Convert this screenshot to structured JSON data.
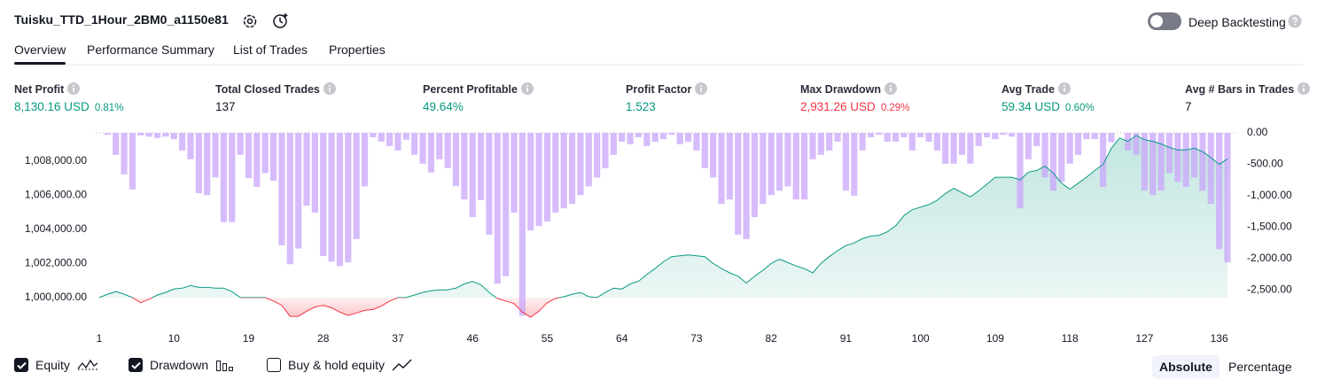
{
  "header": {
    "title": "Tuisku_TTD_1Hour_2BM0_a1150e81",
    "deep_backtesting": "Deep Backtesting"
  },
  "tabs": {
    "items": [
      "Overview",
      "Performance Summary",
      "List of Trades",
      "Properties"
    ],
    "active": 0
  },
  "metrics": [
    {
      "label": "Net Profit",
      "value": "8,130.16 USD",
      "percent": "0.81%",
      "color": "#089981"
    },
    {
      "label": "Total Closed Trades",
      "value": "137"
    },
    {
      "label": "Percent Profitable",
      "value": "49.64%",
      "color": "#089981"
    },
    {
      "label": "Profit Factor",
      "value": "1.523",
      "color": "#089981"
    },
    {
      "label": "Max Drawdown",
      "value": "2,931.26 USD",
      "percent": "0.29%",
      "color": "#f23645"
    },
    {
      "label": "Avg Trade",
      "value": "59.34 USD",
      "percent": "0.60%",
      "color": "#089981"
    },
    {
      "label": "Avg # Bars in Trades",
      "value": "7"
    }
  ],
  "chart_data": {
    "type": "combo",
    "x": [
      1,
      2,
      3,
      4,
      5,
      6,
      7,
      8,
      9,
      10,
      11,
      12,
      13,
      14,
      15,
      16,
      17,
      18,
      19,
      20,
      21,
      22,
      23,
      24,
      25,
      26,
      27,
      28,
      29,
      30,
      31,
      32,
      33,
      34,
      35,
      36,
      37,
      38,
      39,
      40,
      41,
      42,
      43,
      44,
      45,
      46,
      47,
      48,
      49,
      50,
      51,
      52,
      53,
      54,
      55,
      56,
      57,
      58,
      59,
      60,
      61,
      62,
      63,
      64,
      65,
      66,
      67,
      68,
      69,
      70,
      71,
      72,
      73,
      74,
      75,
      76,
      77,
      78,
      79,
      80,
      81,
      82,
      83,
      84,
      85,
      86,
      87,
      88,
      89,
      90,
      91,
      92,
      93,
      94,
      95,
      96,
      97,
      98,
      99,
      100,
      101,
      102,
      103,
      104,
      105,
      106,
      107,
      108,
      109,
      110,
      111,
      112,
      113,
      114,
      115,
      116,
      117,
      118,
      119,
      120,
      121,
      122,
      123,
      124,
      125,
      126,
      127,
      128,
      129,
      130,
      131,
      132,
      133,
      134,
      135,
      136,
      137
    ],
    "xlim": [
      1,
      137
    ],
    "xticks": [
      1,
      10,
      19,
      28,
      37,
      46,
      55,
      64,
      73,
      82,
      91,
      100,
      109,
      118,
      127,
      136
    ],
    "ylim": [
      998750,
      1009650
    ],
    "yticks": [
      {
        "value": 1000000,
        "label": "1,000,000.00"
      },
      {
        "value": 1002000,
        "label": "1,002,000.00"
      },
      {
        "value": 1004000,
        "label": "1,004,000.00"
      },
      {
        "value": 1006000,
        "label": "1,006,000.00"
      },
      {
        "value": 1008000,
        "label": "1,008,000.00"
      }
    ],
    "y2lim": [
      -2960,
      0
    ],
    "y2ticks": [
      {
        "value": 0,
        "label": "0.00"
      },
      {
        "value": -500,
        "label": "-500.00"
      },
      {
        "value": -1000,
        "label": "-1,000.00"
      },
      {
        "value": -1500,
        "label": "-1,500.00"
      },
      {
        "value": -2000,
        "label": "-2,000.00"
      },
      {
        "value": -2500,
        "label": "-2,500.00"
      }
    ],
    "series": [
      {
        "name": "Equity",
        "type": "area",
        "checked": true,
        "color": "#089981",
        "negative_color": "#f23645",
        "values": [
          1000000,
          1000200,
          1000350,
          1000200,
          1000000,
          999700,
          999900,
          1000150,
          1000300,
          1000500,
          1000550,
          1000700,
          1000600,
          1000600,
          1000550,
          1000550,
          1000350,
          1000000,
          1000000,
          1000000,
          1000000,
          999800,
          999550,
          998900,
          998900,
          999200,
          999450,
          999550,
          999400,
          999150,
          998950,
          999100,
          999250,
          999300,
          999500,
          999800,
          1000000,
          1000000,
          1000150,
          1000300,
          1000400,
          1000450,
          1000450,
          1000550,
          1000800,
          1000950,
          1000750,
          1000300,
          999950,
          999800,
          999650,
          999150,
          998850,
          999200,
          999700,
          999950,
          1000050,
          1000200,
          1000300,
          1000050,
          1000000,
          1000300,
          1000550,
          1000500,
          1000800,
          1000950,
          1001350,
          1001700,
          1002100,
          1002400,
          1002450,
          1002500,
          1002450,
          1002400,
          1002000,
          1001700,
          1001450,
          1001250,
          1000850,
          1001250,
          1001600,
          1002000,
          1002250,
          1002050,
          1001850,
          1001700,
          1001450,
          1002000,
          1002400,
          1002750,
          1003050,
          1003200,
          1003450,
          1003600,
          1003650,
          1003850,
          1004200,
          1004800,
          1005150,
          1005300,
          1005450,
          1005700,
          1006100,
          1006400,
          1006150,
          1005900,
          1006250,
          1006650,
          1007050,
          1007050,
          1007050,
          1006900,
          1007350,
          1007450,
          1007700,
          1007300,
          1006700,
          1006350,
          1006700,
          1007050,
          1007450,
          1007800,
          1008750,
          1009350,
          1009150,
          1009500,
          1009250,
          1009150,
          1009000,
          1008800,
          1008650,
          1008650,
          1008750,
          1008550,
          1008200,
          1007800,
          1008130
        ]
      },
      {
        "name": "Drawdown",
        "type": "bar",
        "axis": "y2",
        "checked": true,
        "color": "#c9a6fb",
        "values": [
          0,
          -30,
          -350,
          -660,
          -900,
          -40,
          -60,
          -80,
          -60,
          -100,
          -280,
          -420,
          -960,
          -990,
          -710,
          -1420,
          -1420,
          -350,
          -720,
          -860,
          -640,
          -760,
          -1790,
          -2090,
          -1840,
          -1160,
          -1270,
          -1960,
          -2050,
          -2120,
          -2060,
          -1690,
          -850,
          -70,
          -140,
          -210,
          -280,
          -110,
          -350,
          -490,
          -630,
          -420,
          -560,
          -850,
          -1060,
          -1340,
          -1070,
          -1620,
          -2400,
          -2280,
          -1270,
          -2910,
          -1550,
          -1480,
          -1410,
          -1270,
          -1200,
          -1130,
          -990,
          -850,
          -710,
          -560,
          -350,
          -140,
          -180,
          -70,
          -210,
          -140,
          -100,
          -30,
          -180,
          -140,
          -280,
          -560,
          -710,
          -1130,
          -1060,
          -1620,
          -1690,
          -1340,
          -1130,
          -990,
          -920,
          -850,
          -1060,
          -1060,
          -420,
          -350,
          -280,
          -140,
          -920,
          -1000,
          -280,
          -70,
          -30,
          -140,
          -140,
          -70,
          -280,
          -70,
          -140,
          -280,
          -490,
          -490,
          -350,
          -490,
          -210,
          -70,
          -100,
          -30,
          -60,
          -1200,
          -420,
          -210,
          -710,
          -920,
          -780,
          -490,
          -350,
          -100,
          -100,
          -860,
          -150,
          0,
          -280,
          -350,
          -920,
          -990,
          -920,
          -640,
          -780,
          -860,
          -710,
          -920,
          -1130,
          -1850,
          -2060
        ]
      }
    ]
  },
  "buy_hold": {
    "label": "Buy & hold equity",
    "checked": false
  },
  "modes": {
    "items": [
      "Absolute",
      "Percentage"
    ],
    "active": 0
  }
}
